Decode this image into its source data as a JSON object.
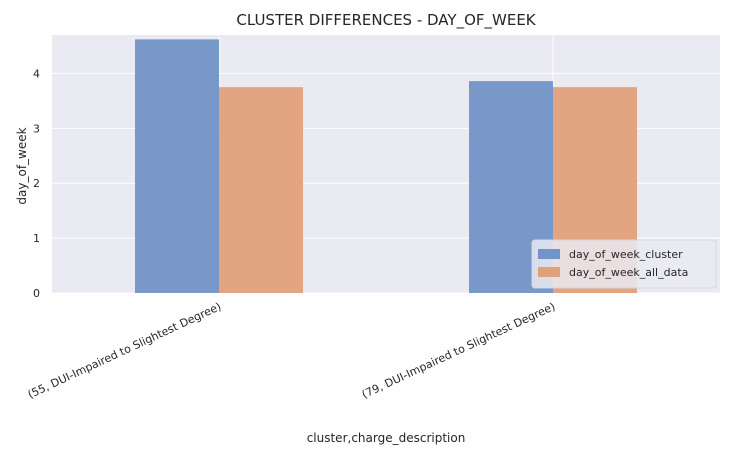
{
  "chart_data": {
    "type": "bar",
    "title": "CLUSTER DIFFERENCES  -  DAY_OF_WEEK",
    "xlabel": "cluster,charge_description",
    "ylabel": "day_of_week",
    "categories": [
      "(55, DUI-Impaired to Slightest Degree)",
      "(79, DUI-Impaired to Slightest Degree)"
    ],
    "series": [
      {
        "name": "day_of_week_cluster",
        "values": [
          4.62,
          3.86
        ],
        "color": "#7394c7"
      },
      {
        "name": "day_of_week_all_data",
        "values": [
          3.75,
          3.75
        ],
        "color": "#e2a07a"
      }
    ],
    "ylim": [
      0,
      4.7
    ],
    "yticks": [
      0,
      1,
      2,
      3,
      4
    ],
    "grid": true,
    "legend_position": "lower-right",
    "background": "#eaeaf2"
  }
}
